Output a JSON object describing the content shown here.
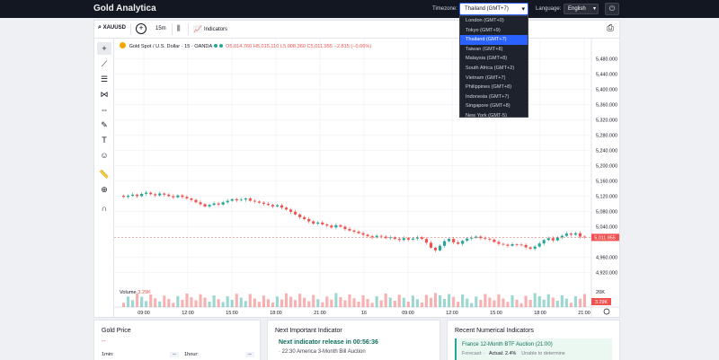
{
  "app": {
    "title": "Gold Analytica"
  },
  "header": {
    "timezone_label": "Timezone:",
    "timezone_selected": "Thailand (GMT+7)",
    "language_label": "Language:",
    "language_selected": "English",
    "timezone_options": [
      "London (GMT+0)",
      "Tokyo (GMT+9)",
      "Thailand (GMT+7)",
      "Taiwan (GMT+8)",
      "Malaysia (GMT+8)",
      "South Africa (GMT+2)",
      "Vietnam (GMT+7)",
      "Philippines (GMT+8)",
      "Indonesia (GMT+7)",
      "Singapore (GMT+8)",
      "New York (GMT-5)"
    ],
    "active_option_index": 2
  },
  "toolbar": {
    "symbol": "XAUUSD",
    "interval": "15m",
    "indicators_label": "Indicators"
  },
  "legend": {
    "name": "Gold Spot / U.S. Dollar · 15 · OANDA",
    "open": "O5,014.760",
    "high": "H5,015.110",
    "low": "L5,008.360",
    "close": "C5,011.955",
    "change": "−2.815 (−0.06%)"
  },
  "volume": {
    "label": "Volume",
    "value": "3.29K"
  },
  "chart_data": {
    "type": "candlestick",
    "y_ticks": [
      "5,480.000",
      "5,440.000",
      "5,400.000",
      "5,360.000",
      "5,320.000",
      "5,280.000",
      "5,240.000",
      "5,200.000",
      "5,160.000",
      "5,120.000",
      "5,080.000",
      "5,040.000",
      "4,960.000",
      "4,920.000"
    ],
    "y_tick_values": [
      5480,
      5440,
      5400,
      5360,
      5320,
      5280,
      5240,
      5200,
      5160,
      5120,
      5080,
      5040,
      4960,
      4920
    ],
    "ylim": [
      4900,
      5500
    ],
    "x_ticks": [
      "09:00",
      "12:00",
      "15:00",
      "18:00",
      "21:00",
      "16",
      "09:00",
      "12:00",
      "15:00",
      "18:00",
      "21:00"
    ],
    "last_price": "5,011.955",
    "last_price_value": 5011.955,
    "volume_tick": "20K",
    "volume_last": "3.29K",
    "close_series": [
      5118,
      5121,
      5124,
      5120,
      5126,
      5129,
      5125,
      5122,
      5127,
      5124,
      5120,
      5117,
      5122,
      5118,
      5114,
      5110,
      5104,
      5099,
      5093,
      5097,
      5101,
      5098,
      5104,
      5108,
      5112,
      5109,
      5111,
      5114,
      5108,
      5106,
      5103,
      5100,
      5097,
      5093,
      5096,
      5090,
      5085,
      5079,
      5072,
      5065,
      5060,
      5054,
      5048,
      5051,
      5046,
      5043,
      5038,
      5044,
      5040,
      5034,
      5030,
      5027,
      5023,
      5019,
      5015,
      5012,
      5016,
      5014,
      5010,
      5012,
      5008,
      5005,
      5010,
      5006,
      5009,
      5012,
      5008,
      4998,
      4985,
      4978,
      4990,
      5002,
      5008,
      4999,
      4995,
      5003,
      5009,
      5011,
      5014,
      5010,
      5008,
      5006,
      5000,
      4995,
      4993,
      4990,
      4994,
      4993,
      4992,
      4986,
      4982,
      4988,
      4996,
      5005,
      5010,
      5004,
      5012,
      5016,
      5022,
      5019,
      5023,
      5014,
      5012
    ]
  },
  "gold_price": {
    "title": "Gold Price",
    "price": "--",
    "row1_label": "1min:",
    "row1_value": "--",
    "row2_label": "1hour:",
    "row2_value": "--"
  },
  "next_indicator": {
    "title": "Next Important Indicator",
    "release": "Next indicator release in 00:56:36",
    "item": "· 22:30 America 3-Month Bill Auction"
  },
  "recent_indicators": {
    "title": "Recent Numerical Indicators",
    "head": "France 12-Month BTF Auction (21:00)",
    "forecast_label": "Forecast: -",
    "actual": "Actual: 2.4%",
    "note": "Unable to determine"
  },
  "colors": {
    "up": "#26a69a",
    "down": "#ef5350",
    "topbar": "#131722",
    "accent": "#2962ff"
  }
}
